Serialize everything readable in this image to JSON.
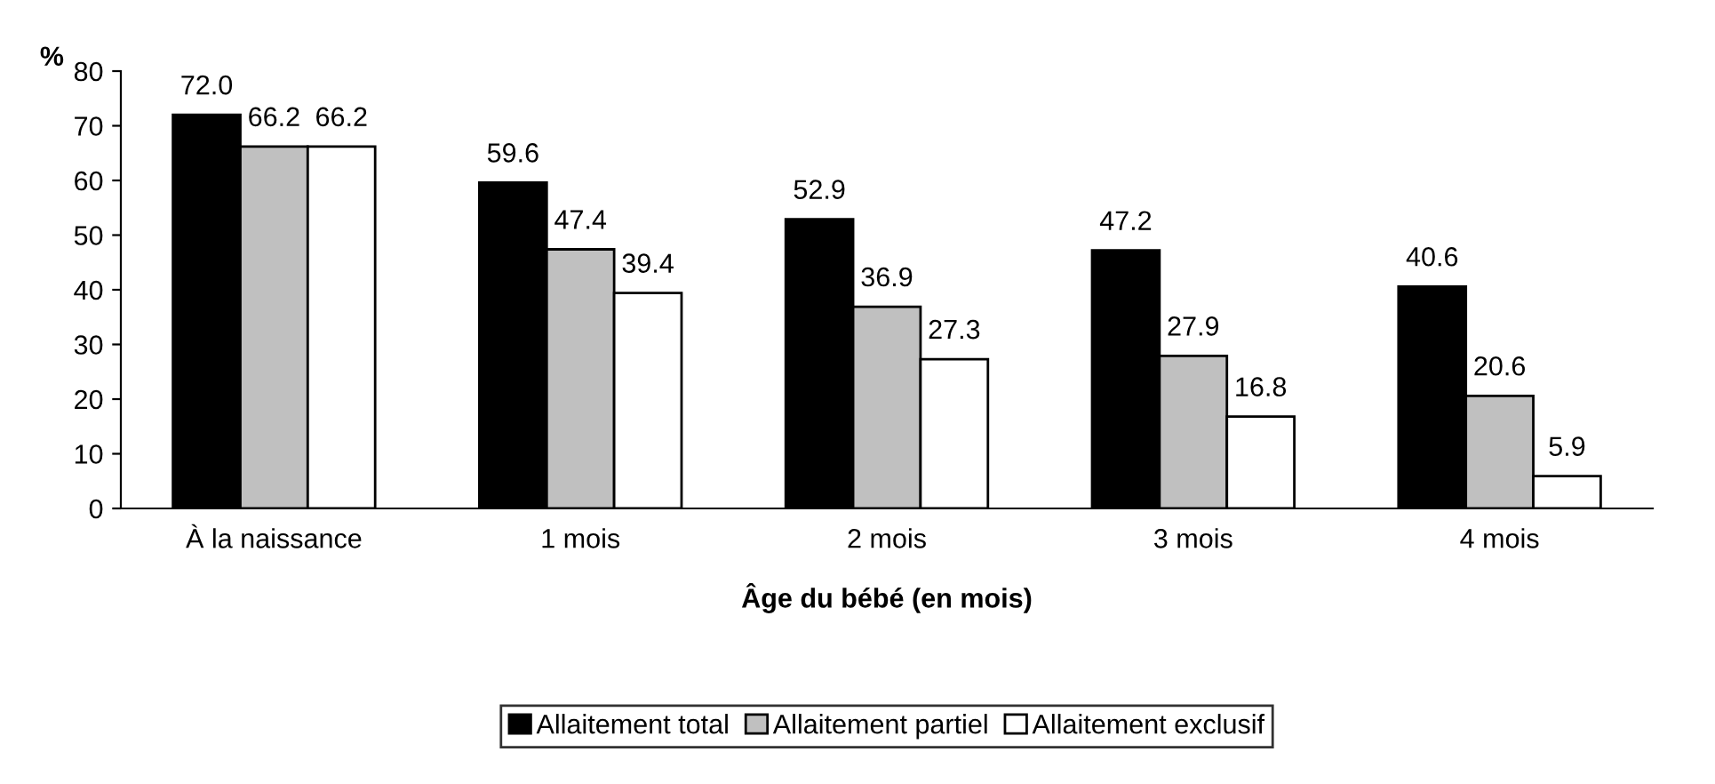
{
  "chart_data": {
    "type": "bar",
    "ylabel": "%",
    "xlabel": "Âge du bébé (en mois)",
    "categories": [
      "À la naissance",
      "1 mois",
      "2 mois",
      "3 mois",
      "4 mois"
    ],
    "series": [
      {
        "name": "Allaitement total",
        "color": "#000000",
        "values": [
          72.0,
          59.6,
          52.9,
          47.2,
          40.6
        ],
        "value_labels": [
          "72.0",
          "59.6",
          "52.9",
          "47.2",
          "40.6"
        ]
      },
      {
        "name": "Allaitement partiel",
        "color": "#c0c0c0",
        "values": [
          66.2,
          47.4,
          36.9,
          27.9,
          20.6
        ],
        "value_labels": [
          "66.2",
          "47.4",
          "36.9",
          "27.9",
          "20.6"
        ]
      },
      {
        "name": "Allaitement exclusif",
        "color": "#ffffff",
        "values": [
          66.2,
          39.4,
          27.3,
          16.8,
          5.9
        ],
        "value_labels": [
          "66.2",
          "39.4",
          "27.3",
          "16.8",
          "5.9"
        ]
      }
    ],
    "ylim": [
      0,
      80
    ],
    "yticks": [
      0,
      10,
      20,
      30,
      40,
      50,
      60,
      70,
      80
    ],
    "grid": false,
    "legend": "bottom"
  }
}
